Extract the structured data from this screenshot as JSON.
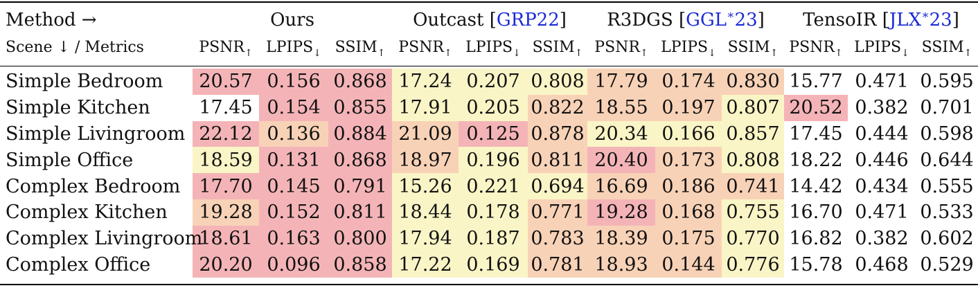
{
  "header": {
    "corner_top": "Method →",
    "corner_bottom": "Scene ↓ / Metrics",
    "methods": [
      {
        "name": "Ours",
        "cite": "",
        "cite_sup": "",
        "cite_tail": ""
      },
      {
        "name": "Outcast [",
        "cite": "GRP22",
        "cite_sup": "",
        "cite_tail": "]"
      },
      {
        "name": "R3DGS [",
        "cite": "GGL",
        "cite_sup": "∗",
        "cite_tail": "23",
        "close": "]"
      },
      {
        "name": "TensoIR [",
        "cite": "JLX",
        "cite_sup": "∗",
        "cite_tail": "23",
        "close": "]"
      }
    ],
    "metrics": [
      {
        "name": "PSNR",
        "arrow": "↑"
      },
      {
        "name": "LPIPS",
        "arrow": "↓"
      },
      {
        "name": "SSIM",
        "arrow": "↑"
      }
    ]
  },
  "rows": [
    {
      "scene": "Simple Bedroom",
      "values": [
        "20.57",
        "0.156",
        "0.868",
        "17.24",
        "0.207",
        "0.808",
        "17.79",
        "0.174",
        "0.830",
        "15.77",
        "0.471",
        "0.595"
      ],
      "shade": [
        "best",
        "best",
        "best",
        "third",
        "third",
        "third",
        "second",
        "second",
        "second",
        "none",
        "none",
        "none"
      ]
    },
    {
      "scene": "Simple Kitchen",
      "values": [
        "17.45",
        "0.154",
        "0.855",
        "17.91",
        "0.205",
        "0.822",
        "18.55",
        "0.197",
        "0.807",
        "20.52",
        "0.382",
        "0.701"
      ],
      "shade": [
        "none",
        "best",
        "best",
        "third",
        "third",
        "second",
        "second",
        "second",
        "third",
        "best",
        "none",
        "none"
      ]
    },
    {
      "scene": "Simple Livingroom",
      "values": [
        "22.12",
        "0.136",
        "0.884",
        "21.09",
        "0.125",
        "0.878",
        "20.34",
        "0.166",
        "0.857",
        "17.45",
        "0.444",
        "0.598"
      ],
      "shade": [
        "best",
        "second",
        "best",
        "second",
        "best",
        "second",
        "third",
        "third",
        "third",
        "none",
        "none",
        "none"
      ]
    },
    {
      "scene": "Simple Office",
      "values": [
        "18.59",
        "0.131",
        "0.868",
        "18.97",
        "0.196",
        "0.811",
        "20.40",
        "0.173",
        "0.808",
        "18.22",
        "0.446",
        "0.644"
      ],
      "shade": [
        "third",
        "best",
        "best",
        "second",
        "third",
        "second",
        "best",
        "second",
        "third",
        "none",
        "none",
        "none"
      ]
    },
    {
      "scene": "Complex Bedroom",
      "values": [
        "17.70",
        "0.145",
        "0.791",
        "15.26",
        "0.221",
        "0.694",
        "16.69",
        "0.186",
        "0.741",
        "14.42",
        "0.434",
        "0.555"
      ],
      "shade": [
        "best",
        "best",
        "best",
        "third",
        "third",
        "third",
        "second",
        "second",
        "second",
        "none",
        "none",
        "none"
      ]
    },
    {
      "scene": "Complex Kitchen",
      "values": [
        "19.28",
        "0.152",
        "0.811",
        "18.44",
        "0.178",
        "0.771",
        "19.28",
        "0.168",
        "0.755",
        "16.70",
        "0.471",
        "0.533"
      ],
      "shade": [
        "second",
        "best",
        "best",
        "third",
        "third",
        "second",
        "best",
        "second",
        "third",
        "none",
        "none",
        "none"
      ]
    },
    {
      "scene": "Complex Livingroom",
      "values": [
        "18.61",
        "0.163",
        "0.800",
        "17.94",
        "0.187",
        "0.783",
        "18.39",
        "0.175",
        "0.770",
        "16.82",
        "0.382",
        "0.602"
      ],
      "shade": [
        "best",
        "best",
        "best",
        "third",
        "third",
        "second",
        "second",
        "second",
        "third",
        "none",
        "none",
        "none"
      ]
    },
    {
      "scene": "Complex Office",
      "values": [
        "20.20",
        "0.096",
        "0.858",
        "17.22",
        "0.169",
        "0.781",
        "18.93",
        "0.144",
        "0.776",
        "15.78",
        "0.468",
        "0.529"
      ],
      "shade": [
        "best",
        "best",
        "best",
        "third",
        "third",
        "second",
        "second",
        "second",
        "third",
        "none",
        "none",
        "none"
      ]
    }
  ],
  "colors": {
    "best": "#f4b4b7",
    "second": "#f8d2b7",
    "third": "#faf5c6",
    "citation": "#1a2ad6"
  }
}
